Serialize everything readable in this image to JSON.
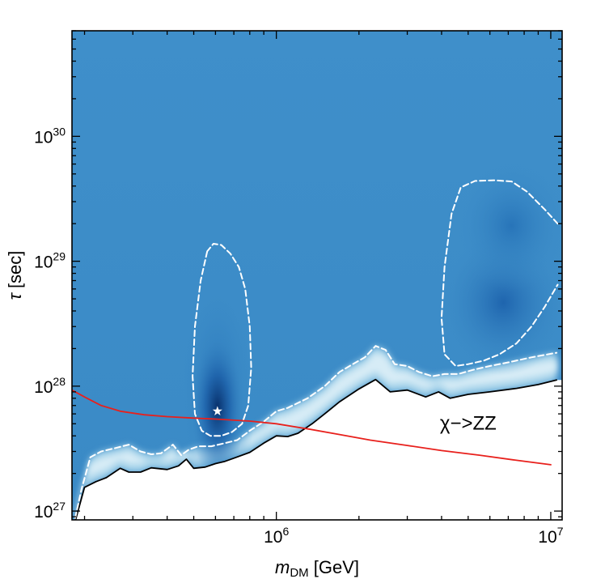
{
  "chart_data": {
    "type": "heatmap",
    "title": "",
    "xscale": "log",
    "yscale": "log",
    "xlim": [
      180000,
      11000000
    ],
    "ylim": [
      8.5e+26,
      7e+30
    ],
    "xlabel": {
      "prefix": "m",
      "subscript": "DM",
      "suffix": " [GeV]"
    },
    "ylabel": {
      "symbol": "τ",
      "suffix": " [sec]"
    },
    "x_ticks": [
      {
        "value": 1000000,
        "base": "10",
        "exponent": "6"
      },
      {
        "value": 10000000,
        "base": "10",
        "exponent": "7"
      }
    ],
    "y_ticks": [
      {
        "value": 1e+27,
        "base": "10",
        "exponent": "27"
      },
      {
        "value": 1e+28,
        "base": "10",
        "exponent": "28"
      },
      {
        "value": 1e+29,
        "base": "10",
        "exponent": "29"
      },
      {
        "value": 1e+30,
        "base": "10",
        "exponent": "30"
      }
    ],
    "colormap": {
      "low": "#ffffff",
      "mid": "#8cc4e0",
      "bulk": "#3d8ec9",
      "high": "#0a3f8a"
    },
    "best_fit": {
      "x": 610000,
      "y": 6.3e+27,
      "marker": "star",
      "color": "#ffffff"
    },
    "annotation": {
      "text": "χ−>ZZ",
      "x": 5000000,
      "y": 4.5e+27
    },
    "series": [
      {
        "name": "exclusion limit",
        "style": "solid",
        "color": "#000000",
        "x": [
          185000,
          200000,
          220000,
          240000,
          270000,
          290000,
          320000,
          350000,
          400000,
          440000,
          470000,
          500000,
          550000,
          600000,
          650000,
          700000,
          800000,
          900000,
          1000000,
          1100000,
          1200000,
          1350000,
          1500000,
          1700000,
          2000000,
          2300000,
          2600000,
          3000000,
          3500000,
          3900000,
          4300000,
          5000000,
          6000000,
          7500000,
          9000000,
          10500000
        ],
        "y": [
          8.3e+26,
          1.55e+27,
          1.72e+27,
          1.85e+27,
          2.2e+27,
          2.05e+27,
          2.05e+27,
          2.22e+27,
          2.15e+27,
          2.3e+27,
          2.6e+27,
          2.2e+27,
          2.25e+27,
          2.4e+27,
          2.5e+27,
          2.65e+27,
          2.95e+27,
          3.5e+27,
          4e+27,
          3.95e+27,
          4.2e+27,
          5e+27,
          6e+27,
          7.5e+27,
          9.5e+27,
          1.13e+28,
          9e+27,
          9.3e+27,
          8.2e+27,
          9e+27,
          8e+27,
          8.6e+27,
          9e+27,
          9.6e+27,
          1.03e+28,
          1.12e+28
        ]
      },
      {
        "name": "lower dashed contour",
        "style": "dashed",
        "color": "#ffffff",
        "x": [
          185000,
          195000,
          210000,
          230000,
          260000,
          290000,
          320000,
          350000,
          380000,
          420000,
          450000,
          480000,
          520000,
          580000,
          650000,
          720000,
          800000,
          900000,
          1000000,
          1100000,
          1300000,
          1500000,
          1700000,
          1900000,
          2100000,
          2300000,
          2500000,
          2700000,
          3000000,
          3300000,
          3700000,
          4100000,
          4600000,
          5200000,
          6000000,
          7000000,
          8500000,
          10500000
        ],
        "y": [
          8.8e+26,
          1.5e+27,
          2.7e+27,
          3e+27,
          3.2e+27,
          3.4e+27,
          3e+27,
          2.85e+27,
          2.9e+27,
          3.4e+27,
          2.8e+27,
          3.1e+27,
          3.3e+27,
          3.3e+27,
          3.5e+27,
          3.7e+27,
          4.4e+27,
          5.2e+27,
          6.3e+27,
          6.7e+27,
          8e+27,
          1e+28,
          1.3e+28,
          1.5e+28,
          1.7e+28,
          2.1e+28,
          1.95e+28,
          1.5e+28,
          1.45e+28,
          1.3e+28,
          1.2e+28,
          1.25e+28,
          1.25e+28,
          1.35e+28,
          1.45e+28,
          1.55e+28,
          1.7e+28,
          1.85e+28
        ]
      },
      {
        "name": "contour around best fit",
        "style": "dashed",
        "color": "#ffffff",
        "closed": true,
        "x": [
          560000,
          530000,
          505000,
          495000,
          505000,
          535000,
          575000,
          630000,
          690000,
          750000,
          790000,
          810000,
          800000,
          770000,
          730000,
          680000,
          630000,
          590000
        ],
        "y": [
          1.2e+29,
          7e+28,
          3e+28,
          1.2e+28,
          6e+27,
          4.4e+27,
          4e+27,
          4e+27,
          4.3e+27,
          5e+27,
          7e+27,
          1.4e+28,
          3e+28,
          6e+28,
          9e+28,
          1.15e+29,
          1.35e+29,
          1.38e+29
        ]
      },
      {
        "name": "contour at high mass",
        "style": "dashed",
        "color": "#ffffff",
        "x": [
          10600000,
          9500000,
          8200000,
          7200000,
          6200000,
          5300000,
          4700000,
          4350000,
          4100000,
          4000000,
          4100000,
          4500000,
          5000000,
          5700000,
          6500000,
          7500000,
          8500000,
          9500000,
          10600000
        ],
        "y": [
          2e+29,
          2.6e+29,
          3.6e+29,
          4.35e+29,
          4.45e+29,
          4.4e+29,
          3.9e+29,
          2.4e+29,
          9e+28,
          3.5e+28,
          1.8e+28,
          1.45e+28,
          1.5e+28,
          1.6e+28,
          1.8e+28,
          2.2e+28,
          3e+28,
          4.3e+28,
          6.5e+28
        ]
      },
      {
        "name": "χ->ZZ",
        "style": "solid",
        "color": "#e8201c",
        "x": [
          180000,
          200000,
          230000,
          270000,
          330000,
          400000,
          500000,
          600000,
          800000,
          1000000,
          1300000,
          1700000,
          2200000,
          3000000,
          4000000,
          5500000,
          7500000,
          10000000
        ],
        "y": [
          9.3e+27,
          8.2e+27,
          7e+27,
          6.3e+27,
          5.9e+27,
          5.7e+27,
          5.55e+27,
          5.45e+27,
          5.25e+27,
          5e+27,
          4.55e+27,
          4.1e+27,
          3.7e+27,
          3.35e+27,
          3.05e+27,
          2.8e+27,
          2.55e+27,
          2.35e+27
        ]
      }
    ]
  }
}
